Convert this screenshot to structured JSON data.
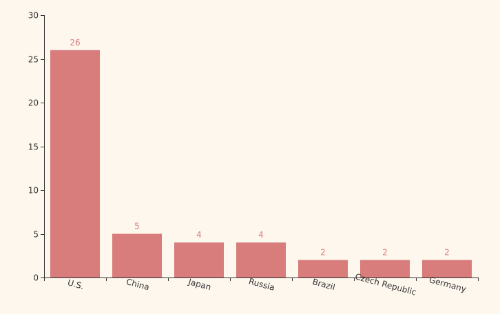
{
  "chart_data": {
    "type": "bar",
    "title": "",
    "xlabel": "",
    "ylabel": "",
    "categories": [
      "U.S.",
      "China",
      "Japan",
      "Russia",
      "Brazil",
      "Czech Republic",
      "Germany"
    ],
    "values": [
      26,
      5,
      4,
      4,
      2,
      2,
      2
    ],
    "data_labels": [
      "26",
      "5",
      "4",
      "4",
      "2",
      "2",
      "2"
    ],
    "ylim": [
      0,
      30
    ],
    "y_ticks": [
      0,
      5,
      10,
      15,
      20,
      25,
      30
    ],
    "y_tick_labels": [
      "0",
      "5",
      "10",
      "15",
      "20",
      "25",
      "30"
    ],
    "grid": false,
    "legend": "none",
    "bar_color": "#d87c7c",
    "label_color": "#d87c7c",
    "background_color": "#fef7ee"
  }
}
